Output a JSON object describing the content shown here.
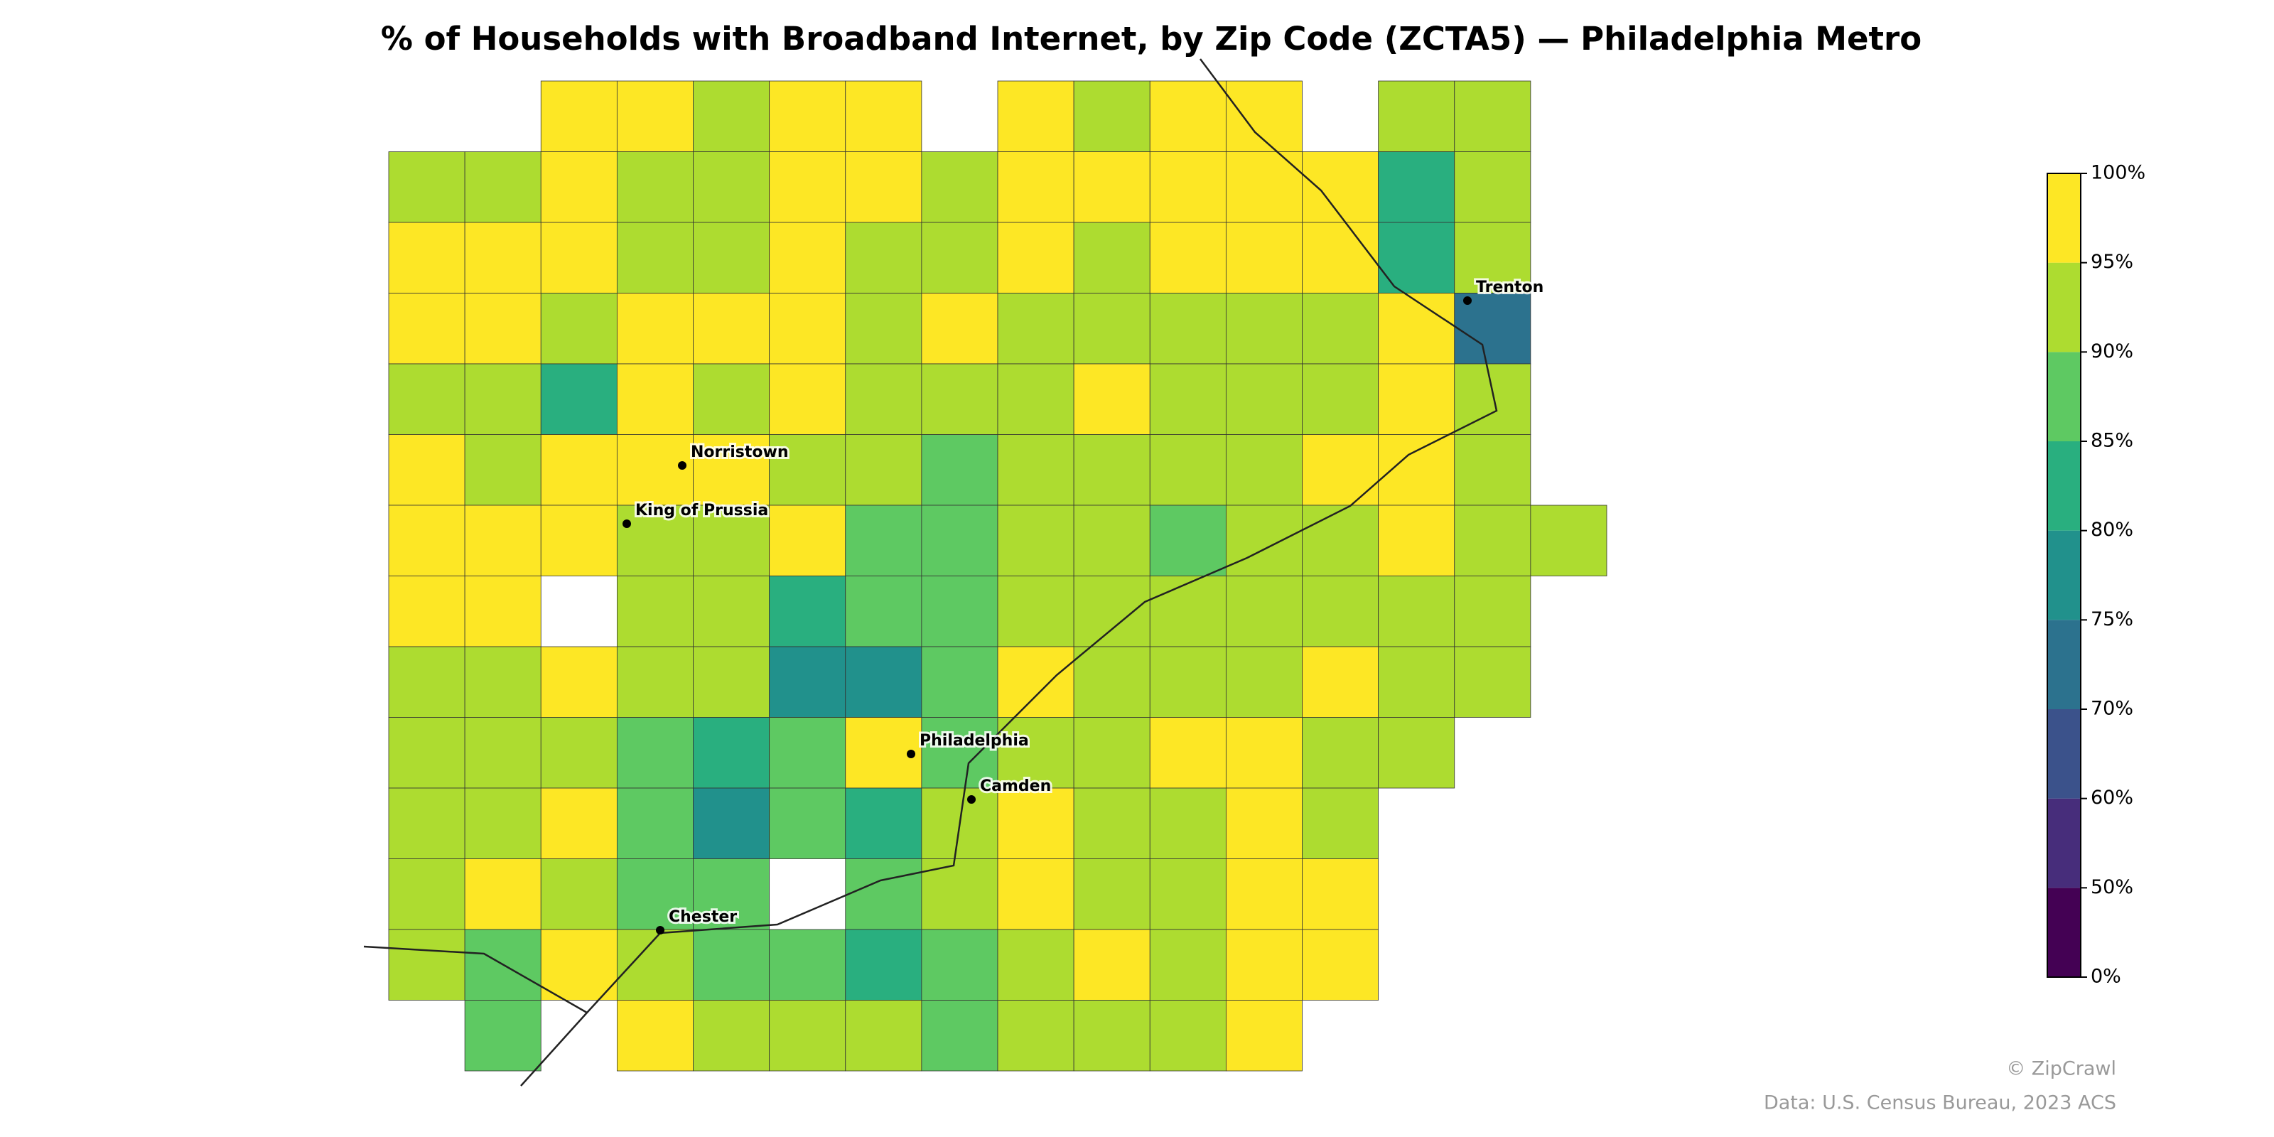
{
  "chart_data": {
    "type": "choropleth",
    "title": "% of Households with Broadband Internet, by Zip Code (ZCTA5) — Philadelphia Metro",
    "values": [
      [
        null,
        null,
        97,
        97,
        93,
        97,
        97,
        null,
        97,
        93,
        97,
        97,
        null,
        93,
        93,
        null
      ],
      [
        93,
        93,
        97,
        93,
        93,
        97,
        97,
        93,
        97,
        97,
        97,
        97,
        97,
        82,
        93,
        null
      ],
      [
        97,
        97,
        97,
        93,
        93,
        97,
        93,
        93,
        97,
        93,
        97,
        97,
        97,
        82,
        93,
        null
      ],
      [
        97,
        97,
        93,
        97,
        97,
        97,
        93,
        97,
        93,
        93,
        93,
        93,
        93,
        97,
        73,
        null
      ],
      [
        93,
        93,
        83,
        97,
        93,
        97,
        93,
        93,
        93,
        97,
        93,
        93,
        93,
        97,
        93,
        null
      ],
      [
        97,
        93,
        97,
        97,
        97,
        93,
        93,
        88,
        93,
        93,
        93,
        93,
        97,
        97,
        93,
        null
      ],
      [
        97,
        97,
        97,
        93,
        93,
        97,
        88,
        88,
        93,
        93,
        88,
        93,
        93,
        97,
        93,
        93
      ],
      [
        97,
        97,
        null,
        93,
        93,
        83,
        88,
        88,
        93,
        93,
        93,
        93,
        93,
        93,
        93,
        null
      ],
      [
        93,
        93,
        97,
        93,
        93,
        78,
        78,
        88,
        97,
        93,
        93,
        93,
        97,
        93,
        93,
        null
      ],
      [
        93,
        93,
        93,
        88,
        83,
        88,
        97,
        88,
        93,
        93,
        97,
        97,
        93,
        93,
        null,
        null
      ],
      [
        93,
        93,
        97,
        88,
        78,
        88,
        83,
        93,
        97,
        93,
        93,
        97,
        93,
        null,
        null,
        null
      ],
      [
        93,
        97,
        93,
        88,
        88,
        null,
        88,
        93,
        97,
        93,
        93,
        97,
        97,
        null,
        null,
        null
      ],
      [
        93,
        88,
        97,
        93,
        88,
        88,
        83,
        88,
        93,
        97,
        93,
        97,
        97,
        null,
        null,
        null
      ],
      [
        null,
        88,
        null,
        97,
        93,
        93,
        93,
        88,
        93,
        93,
        93,
        97,
        null,
        null,
        null,
        null
      ]
    ],
    "colorbar": {
      "ticks": [
        {
          "value": 0,
          "label": "0%"
        },
        {
          "value": 50,
          "label": "50%"
        },
        {
          "value": 60,
          "label": "60%"
        },
        {
          "value": 70,
          "label": "70%"
        },
        {
          "value": 75,
          "label": "75%"
        },
        {
          "value": 80,
          "label": "80%"
        },
        {
          "value": 85,
          "label": "85%"
        },
        {
          "value": 90,
          "label": "90%"
        },
        {
          "value": 95,
          "label": "95%"
        },
        {
          "value": 100,
          "label": "100%"
        }
      ],
      "colors": [
        "#440154",
        "#472d7b",
        "#3b528b",
        "#2c728e",
        "#21918c",
        "#29af7f",
        "#5ec962",
        "#addc30",
        "#fde725"
      ]
    },
    "cities": [
      "Trenton",
      "Norristown",
      "King of Prussia",
      "Philadelphia",
      "Camden",
      "Chester"
    ],
    "credit": "© ZipCrawl",
    "source": "Data: U.S. Census Bureau, 2023 ACS"
  }
}
